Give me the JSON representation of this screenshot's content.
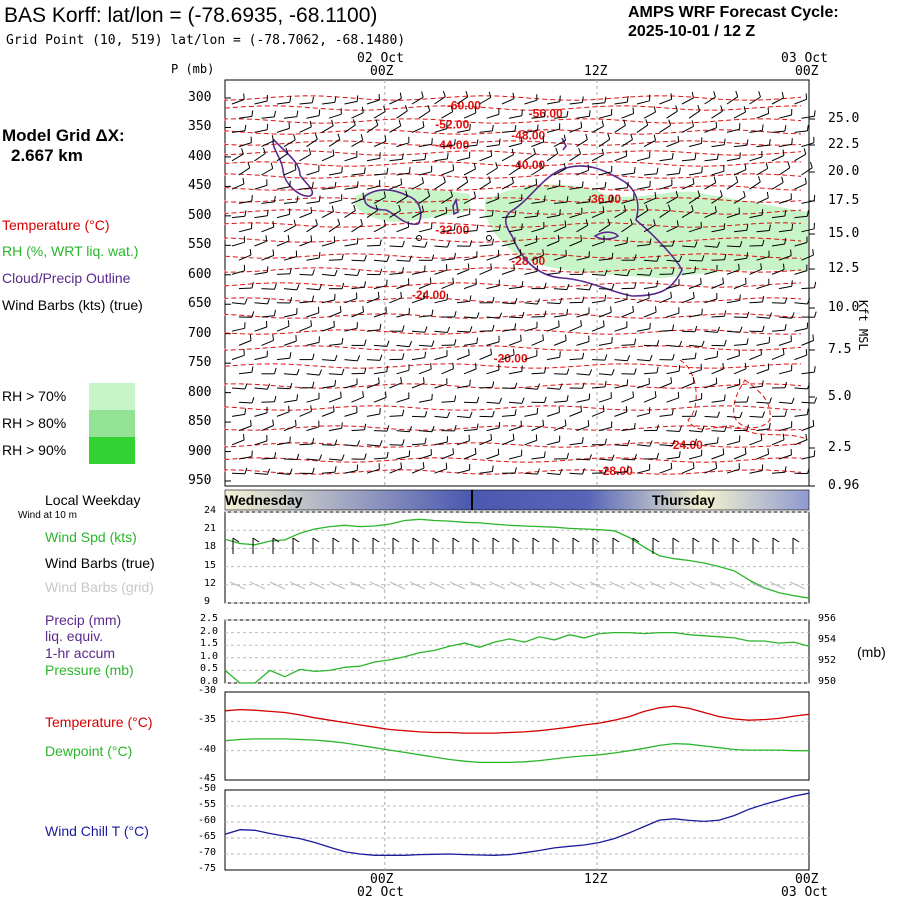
{
  "header": {
    "title": "BAS Korff:  lat/lon = (-78.6935, -68.1100)",
    "grid_point": "Grid Point (10, 519) lat/lon = (-78.7062, -68.1480)",
    "cycle_line1": "AMPS WRF Forecast Cycle:",
    "cycle_line2": "2025-10-01 / 12  Z"
  },
  "colors": {
    "temperature": "#d40000",
    "rh": "#2bb52b",
    "cloud": "#5a2a8c",
    "wind_chill": "#1a1a9c",
    "rh70": "#c8f5c8",
    "rh80": "#94e294",
    "rh90": "#32d232"
  },
  "time_axis": {
    "top_date_left": "02 Oct",
    "top_date_right": "03 Oct",
    "ticks": [
      "00Z",
      "12Z",
      "00Z"
    ],
    "bottom_date_left": "02 Oct",
    "bottom_date_right": "03 Oct"
  },
  "sidebar": {
    "p_label": "P (mb)",
    "model_grid_label": "Model Grid ΔX:",
    "model_grid_value": "2.667 km",
    "temperature_label": "Temperature (°C)",
    "rh_label": "RH (%, WRT liq. wat.)",
    "cloud_label": "Cloud/Precip Outline",
    "wind_label": "Wind Barbs (kts) (true)",
    "rh70": "RH > 70%",
    "rh80": "RH > 80%",
    "rh90": "RH > 90%"
  },
  "right_axis": {
    "title": "Kft MSL",
    "labels": [
      "25.0",
      "22.5",
      "20.0",
      "17.5",
      "15.0",
      "12.5",
      "10.0",
      "7.5",
      "5.0",
      "2.5",
      "0.96"
    ]
  },
  "weekday_bar": {
    "label": "Local Weekday",
    "day1": "Wednesday",
    "day2": "Thursday"
  },
  "panel_labels": {
    "wind10m": "Wind at 10 m",
    "wind_spd": "Wind Spd (kts)",
    "wind_barbs_true": "Wind Barbs (true)",
    "wind_barbs_grid": "Wind Barbs (grid)",
    "precip": "Precip (mm)",
    "liq": "liq. equiv.",
    "accum": "1-hr accum",
    "pressure": "Pressure (mb)",
    "pressure_unit": "(mb)",
    "temperature": "Temperature (°C)",
    "dewpoint": "Dewpoint (°C)",
    "wind_chill": "Wind Chill T (°C)"
  },
  "chart_data": [
    {
      "type": "line",
      "name": "cross-section",
      "pressure_levels": [
        300,
        350,
        400,
        450,
        500,
        550,
        600,
        650,
        700,
        750,
        800,
        850,
        900,
        950
      ],
      "isotherm_labels": [
        {
          "value": "-60.00",
          "t": 0.38,
          "p": 311
        },
        {
          "value": "-56.00",
          "t": 0.52,
          "p": 325
        },
        {
          "value": "-52.00",
          "t": 0.36,
          "p": 343
        },
        {
          "value": "-48.00",
          "t": 0.49,
          "p": 362
        },
        {
          "value": "-44.00",
          "t": 0.36,
          "p": 378
        },
        {
          "value": "-40.00",
          "t": 0.49,
          "p": 412
        },
        {
          "value": "-36.00",
          "t": 0.62,
          "p": 470
        },
        {
          "value": "-32.00",
          "t": 0.36,
          "p": 522
        },
        {
          "value": "-28.00",
          "t": 0.49,
          "p": 575
        },
        {
          "value": "-24.00",
          "t": 0.32,
          "p": 633
        },
        {
          "value": "-20.00",
          "t": 0.46,
          "p": 740
        },
        {
          "value": "-24.00",
          "t": 0.76,
          "p": 887
        },
        {
          "value": "-28.00",
          "t": 0.64,
          "p": 931
        }
      ]
    },
    {
      "type": "line",
      "name": "Wind Spd (kts)",
      "ylim": [
        9,
        24
      ],
      "yticks": [
        9,
        12,
        15,
        18,
        21,
        24
      ],
      "values": [
        19.5,
        18.8,
        18.6,
        19.2,
        19.4,
        20.5,
        21.2,
        21.6,
        21.8,
        21.6,
        21.7,
        22.0,
        22.6,
        22.8,
        22.6,
        22.5,
        22.3,
        22.2,
        22.0,
        21.8,
        21.7,
        21.6,
        21.5,
        21.3,
        21.2,
        21.1,
        20.9,
        19.8,
        18.2,
        16.8,
        16.3,
        16.0,
        15.6,
        15.0,
        14.3,
        12.8,
        11.5,
        10.7,
        10.2,
        9.8
      ]
    },
    {
      "type": "line",
      "name": "Pressure (mb)",
      "ylim_precip": [
        0,
        2.5
      ],
      "yticks_precip": [
        "0.0",
        "0.5",
        "1.0",
        "1.5",
        "2.0",
        "2.5"
      ],
      "ylim": [
        950,
        956
      ],
      "yticks": [
        950,
        952,
        954,
        956
      ],
      "values": [
        951.2,
        950.0,
        950.0,
        951.2,
        950.6,
        951.3,
        951.1,
        951.2,
        951.5,
        951.6,
        952.0,
        952.2,
        952.5,
        952.9,
        953.1,
        953.5,
        953.8,
        953.4,
        953.9,
        954.2,
        953.9,
        954.4,
        954.1,
        954.6,
        954.3,
        954.7,
        954.8,
        954.8,
        954.7,
        954.8,
        954.8,
        954.6,
        954.5,
        954.4,
        954.3,
        954.0,
        954.0,
        953.8,
        953.9,
        953.5
      ]
    },
    {
      "type": "line",
      "name": "Temperature / Dewpoint",
      "ylim": [
        -45,
        -30
      ],
      "yticks": [
        -30,
        -35,
        -40,
        -45
      ],
      "series": [
        {
          "name": "Temperature",
          "values": [
            -33.2,
            -33.0,
            -33.1,
            -33.3,
            -33.5,
            -33.9,
            -34.4,
            -34.8,
            -35.2,
            -35.6,
            -36.0,
            -36.4,
            -36.6,
            -36.8,
            -36.9,
            -36.9,
            -37.0,
            -37.0,
            -37.0,
            -36.9,
            -36.8,
            -36.6,
            -36.3,
            -36.0,
            -35.6,
            -35.3,
            -34.8,
            -34.2,
            -33.3,
            -32.7,
            -32.4,
            -32.8,
            -33.5,
            -34.2,
            -34.6,
            -34.8,
            -34.7,
            -34.5,
            -34.1,
            -33.8
          ]
        },
        {
          "name": "Dewpoint",
          "values": [
            -38.3,
            -38.1,
            -38.0,
            -38.0,
            -38.0,
            -38.1,
            -38.2,
            -38.4,
            -38.7,
            -39.1,
            -39.5,
            -39.9,
            -40.3,
            -40.7,
            -41.1,
            -41.5,
            -41.8,
            -42.0,
            -42.0,
            -42.0,
            -41.9,
            -41.7,
            -41.4,
            -41.1,
            -40.9,
            -40.7,
            -40.4,
            -40.0,
            -39.6,
            -39.1,
            -38.8,
            -38.9,
            -39.2,
            -39.5,
            -39.8,
            -39.9,
            -39.9,
            -39.9,
            -40.0,
            -40.0
          ]
        }
      ]
    },
    {
      "type": "line",
      "name": "Wind Chill T",
      "ylim": [
        -75,
        -50
      ],
      "yticks": [
        -50,
        -55,
        -60,
        -65,
        -70,
        -75
      ],
      "values": [
        -63.8,
        -62.4,
        -62.6,
        -63.6,
        -64.4,
        -65.2,
        -66.4,
        -67.9,
        -69.3,
        -70.0,
        -70.4,
        -70.4,
        -70.4,
        -70.2,
        -70.1,
        -70.0,
        -70.2,
        -70.3,
        -70.4,
        -70.2,
        -69.6,
        -68.9,
        -68.1,
        -67.6,
        -67.2,
        -66.4,
        -65.2,
        -63.4,
        -61.4,
        -59.4,
        -59.0,
        -59.5,
        -59.8,
        -59.4,
        -58.0,
        -56.0,
        -54.5,
        -53.2,
        -51.9,
        -51.0
      ]
    }
  ]
}
